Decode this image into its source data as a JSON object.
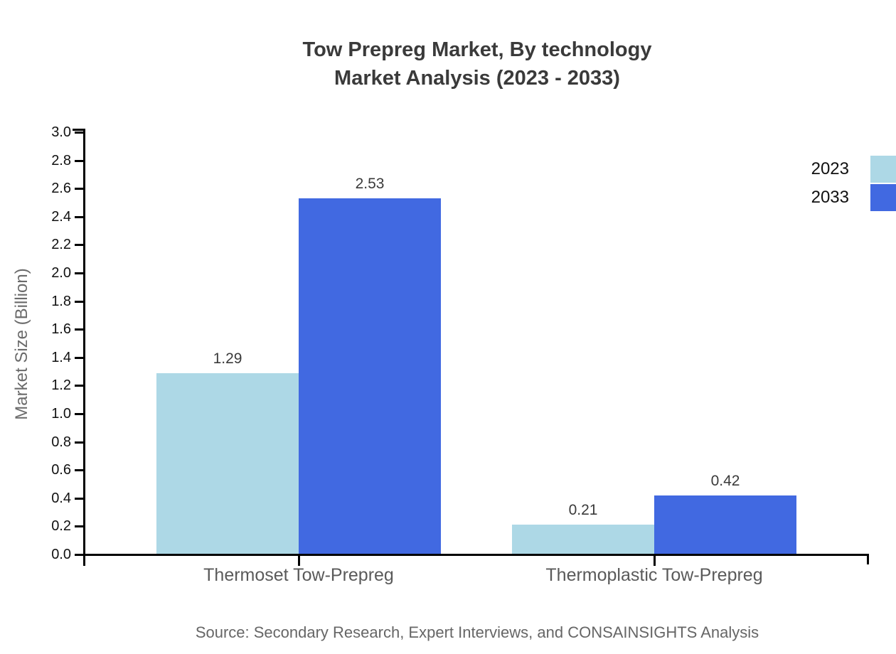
{
  "chart_data": {
    "type": "bar",
    "title": "Tow Prepreg Market, By technology",
    "subtitle": "Market Analysis (2023 - 2033)",
    "ylabel": "Market Size (Billion)",
    "xlabel": "",
    "categories": [
      "Thermoset Tow-Prepreg",
      "Thermoplastic Tow-Prepreg"
    ],
    "series": [
      {
        "name": "2023",
        "color": "#add8e6",
        "values": [
          1.29,
          0.21
        ]
      },
      {
        "name": "2033",
        "color": "#4169e1",
        "values": [
          2.53,
          0.42
        ]
      }
    ],
    "ylim": [
      0,
      3.0
    ],
    "ytick_step": 0.2,
    "grid": "off",
    "legend_position": "right-outside-top",
    "value_label_decimals": 2,
    "source": "Source: Secondary Research, Expert Interviews, and CONSAINSIGHTS Analysis"
  },
  "colors": {
    "title": "#3a3a3a",
    "tick_label": "#111111",
    "value_label": "#3a3a3a",
    "category_label": "#5a5a5a",
    "axis_label": "#6b6b6b",
    "axis_line": "#000000",
    "legend_text": "#111111",
    "source_text": "#666666",
    "background": "#ffffff"
  }
}
